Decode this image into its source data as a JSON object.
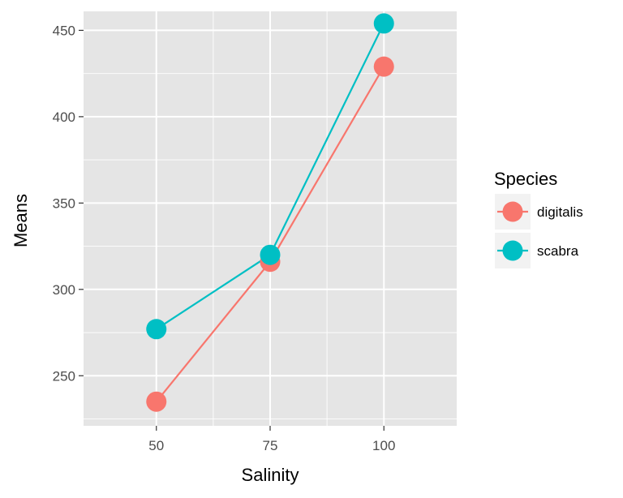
{
  "chart_data": {
    "type": "line",
    "xlabel": "Salinity",
    "ylabel": "Means",
    "x": [
      50,
      75,
      100
    ],
    "x_ticks": [
      "50",
      "75",
      "100"
    ],
    "y_ticks": [
      "250",
      "300",
      "350",
      "400",
      "450"
    ],
    "xlim": [
      34,
      116
    ],
    "ylim": [
      221,
      461
    ],
    "grid": true,
    "panel_background": "#e5e5e5",
    "legend": {
      "title": "Species",
      "placement": "right",
      "entries": [
        "digitalis",
        "scabra"
      ]
    },
    "series": [
      {
        "name": "digitalis",
        "color": "#f8766d",
        "values": [
          235,
          316,
          429
        ]
      },
      {
        "name": "scabra",
        "color": "#00bfc4",
        "values": [
          277,
          320,
          454
        ]
      }
    ]
  }
}
